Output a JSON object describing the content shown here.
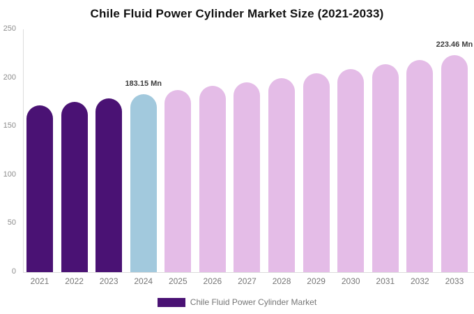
{
  "chart_data": {
    "type": "bar",
    "title": "Chile Fluid Power Cylinder Market Size (2021-2033)",
    "unit": "Mn",
    "categories": [
      "2021",
      "2022",
      "2023",
      "2024",
      "2025",
      "2026",
      "2027",
      "2028",
      "2029",
      "2030",
      "2031",
      "2032",
      "2033"
    ],
    "series": [
      {
        "name": "Chile Fluid Power Cylinder Market",
        "values": [
          171.4,
          175.2,
          179.1,
          183.15,
          187.3,
          191.5,
          195.7,
          200.1,
          204.6,
          209.2,
          213.9,
          218.7,
          223.46
        ]
      }
    ],
    "value_labels": [
      "",
      "",
      "",
      "183.15 Mn",
      "",
      "",
      "",
      "",
      "",
      "",
      "",
      "",
      "223.46 Mn"
    ],
    "point_colors": [
      "#4A1274",
      "#4A1274",
      "#4A1274",
      "#A2C9DD",
      "#E4BCE7",
      "#E4BCE7",
      "#E4BCE7",
      "#E4BCE7",
      "#E4BCE7",
      "#E4BCE7",
      "#E4BCE7",
      "#E4BCE7",
      "#E4BCE7"
    ],
    "ylim": [
      0,
      250
    ],
    "yticks": [
      0,
      50,
      100,
      150,
      200,
      250
    ],
    "grid": false,
    "legend": {
      "position": "bottom",
      "items": [
        {
          "label": "Chile Fluid Power Cylinder Market",
          "color": "#4A1274"
        }
      ]
    },
    "colors": {
      "historical_bar": "#4A1274",
      "base_year_bar": "#A2C9DD",
      "forecast_bar": "#E4BCE7",
      "axis_line": "#DCDCDC",
      "y_tick_text": "#8C8C8C",
      "x_label_text": "#757575",
      "value_label_text": "#3C3C3C",
      "title_text": "#111111",
      "background": "#FFFFFF"
    }
  }
}
